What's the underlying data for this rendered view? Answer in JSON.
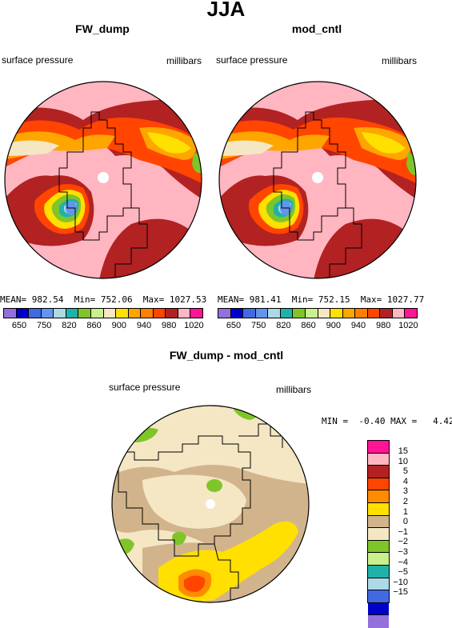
{
  "title": "JJA",
  "panels": [
    {
      "name": "FW_dump",
      "variable": "surface pressure",
      "units": "millibars",
      "stats": "MEAN= 982.54  Min= 752.06  Max= 1027.53"
    },
    {
      "name": "mod_cntl",
      "variable": "surface pressure",
      "units": "millibars",
      "stats": "MEAN= 981.41  Min= 752.15  Max= 1027.77"
    }
  ],
  "top_colorbar": {
    "colors": [
      "#9370DB",
      "#0000CD",
      "#4169E1",
      "#6495ED",
      "#ADD8E6",
      "#20B2AA",
      "#7FC52A",
      "#C8F08C",
      "#F5E6C4",
      "#FFE000",
      "#FFA500",
      "#FF7F00",
      "#FF4500",
      "#B22222",
      "#FFB6C1",
      "#FF1493"
    ],
    "labels": [
      "650",
      "750",
      "820",
      "860",
      "900",
      "940",
      "980",
      "1020"
    ]
  },
  "difference": {
    "title": "FW_dump - mod_cntl",
    "variable": "surface pressure",
    "units": "millibars",
    "stats": "MIN =  -0.40 MAX =   4.42",
    "colors": [
      "#FF1493",
      "#FFB6C1",
      "#B22222",
      "#FF4500",
      "#FF8C00",
      "#FFE000",
      "#D2B48C",
      "#F5E6C4",
      "#7FC52A",
      "#C8F08C",
      "#20B2AA",
      "#ADD8E6",
      "#4169E1",
      "#0000CD",
      "#9370DB"
    ],
    "labels": [
      "15",
      "10",
      "5",
      "4",
      "3",
      "2",
      "1",
      "0",
      "−1",
      "−2",
      "−3",
      "−4",
      "−5",
      "−10",
      "−15"
    ]
  }
}
